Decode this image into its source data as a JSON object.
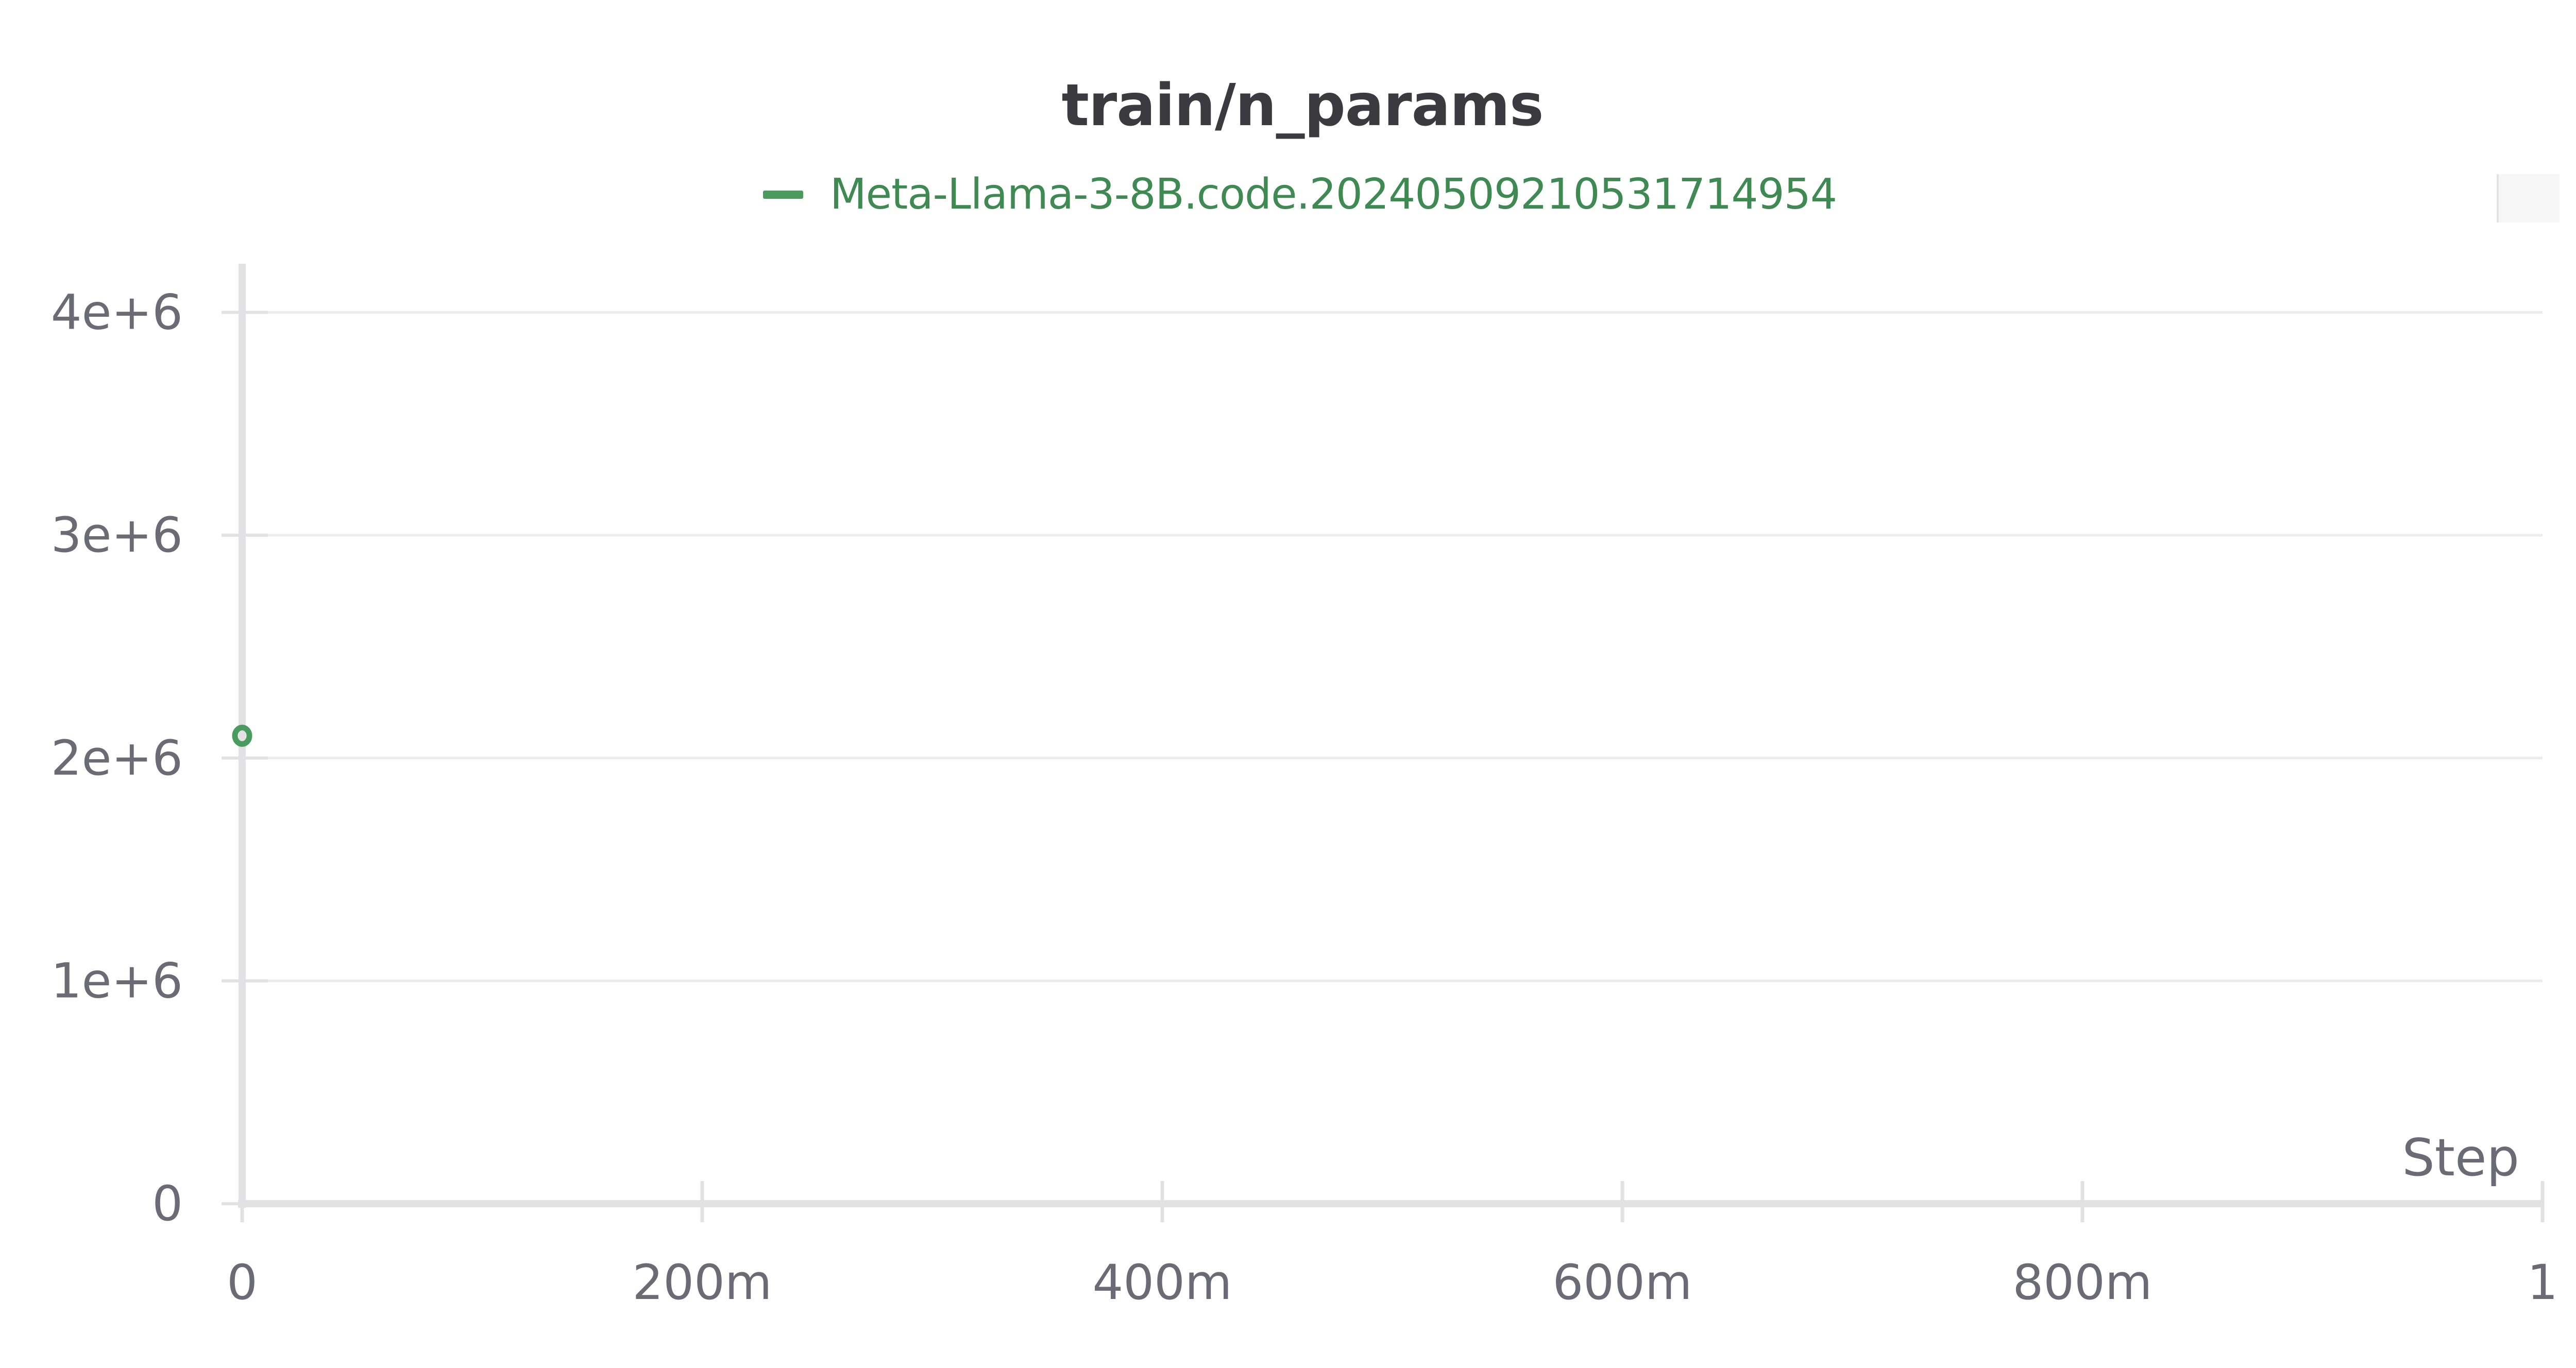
{
  "chart_data": {
    "type": "scatter",
    "title": "train/n_params",
    "xlabel": "Step",
    "ylabel": "",
    "xlim": [
      0,
      1
    ],
    "ylim": [
      0,
      4200000
    ],
    "x_ticks": [
      0,
      0.2,
      0.4,
      0.6,
      0.8,
      1
    ],
    "x_tick_labels": [
      "0",
      "200m",
      "400m",
      "600m",
      "800m",
      "1"
    ],
    "y_ticks": [
      0,
      1000000,
      2000000,
      3000000,
      4000000
    ],
    "y_tick_labels": [
      "0",
      "1e+6",
      "2e+6",
      "3e+6",
      "4e+6"
    ],
    "grid": true,
    "legend_position": "top-center",
    "series": [
      {
        "name": "Meta-Llama-3-8B.code.20240509210531714954",
        "color": "#4a9b5e",
        "points": [
          {
            "x": 0,
            "y": 2100000
          }
        ]
      }
    ]
  },
  "colors": {
    "axis": "#e2e2e4",
    "grid": "#ececee",
    "tick_text": "#6b6b75",
    "title": "#3a3a3f"
  }
}
